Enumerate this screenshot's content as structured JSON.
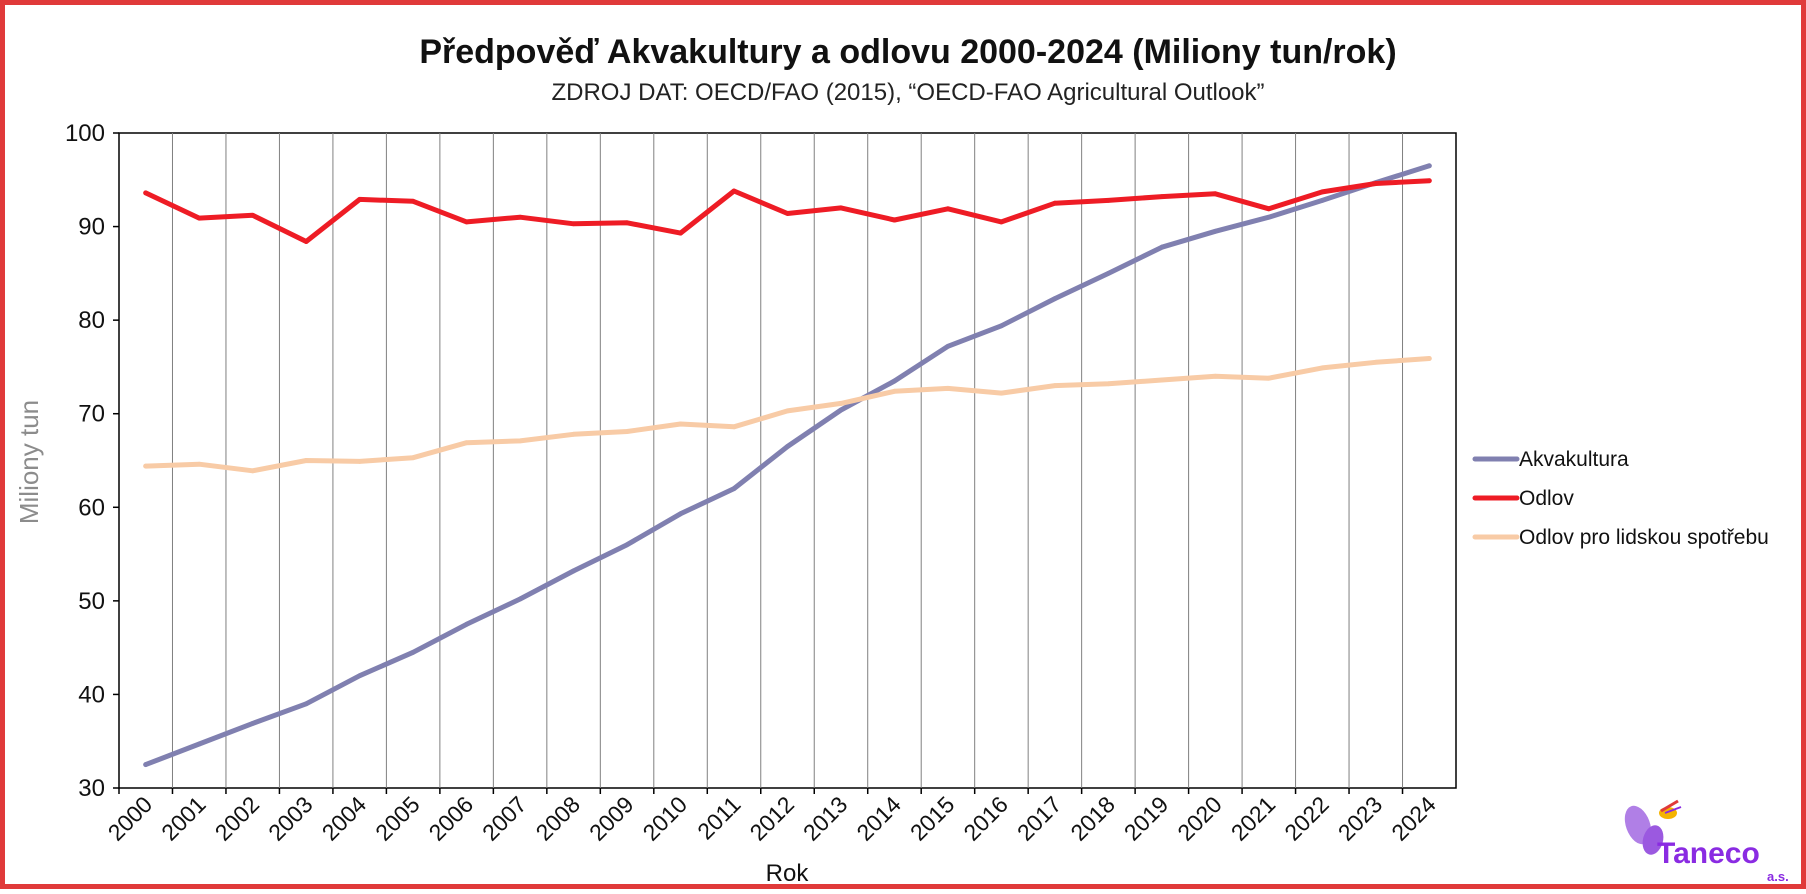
{
  "chart_data": {
    "type": "line",
    "title": "Předpověď Akvakultury a odlovu 2000-2024 (Miliony tun/rok)",
    "subtitle": "ZDROJ DAT: OECD/FAO (2015), “OECD-FAO Agricultural Outlook”",
    "xlabel": "Rok",
    "ylabel": "Miliony tun",
    "ylim": [
      30,
      100
    ],
    "yticks": [
      "30",
      "40",
      "50",
      "60",
      "70",
      "80",
      "90",
      "100"
    ],
    "categories": [
      "2000",
      "2001",
      "2002",
      "2003",
      "2004",
      "2005",
      "2006",
      "2007",
      "2008",
      "2009",
      "2010",
      "2011",
      "2012",
      "2013",
      "2014",
      "2015",
      "2016",
      "2017",
      "2018",
      "2019",
      "2020",
      "2021",
      "2022",
      "2023",
      "2024"
    ],
    "grid": "vertical",
    "legend_position": "right",
    "series": [
      {
        "name": "Akvakultura",
        "color": "#8080b0",
        "values": [
          32.5,
          34.7,
          36.9,
          39.0,
          42.0,
          44.5,
          47.5,
          50.2,
          53.2,
          56.0,
          59.3,
          62.0,
          66.5,
          70.4,
          73.5,
          77.2,
          79.4,
          82.3,
          85.0,
          87.8,
          89.5,
          91.0,
          92.8,
          94.7,
          96.5
        ]
      },
      {
        "name": "Odlov",
        "color": "#ee1c25",
        "values": [
          93.6,
          90.9,
          91.2,
          88.4,
          92.9,
          92.7,
          90.5,
          91.0,
          90.3,
          90.4,
          89.3,
          93.8,
          91.4,
          92.0,
          90.7,
          91.9,
          90.5,
          92.5,
          92.8,
          93.2,
          93.5,
          91.9,
          93.7,
          94.6,
          94.9
        ]
      },
      {
        "name": "Odlov pro lidskou spotřebu",
        "color": "#f8cba6",
        "values": [
          64.4,
          64.6,
          63.9,
          65.0,
          64.9,
          65.3,
          66.9,
          67.1,
          67.8,
          68.1,
          68.9,
          68.6,
          70.3,
          71.1,
          72.4,
          72.7,
          72.2,
          73.0,
          73.2,
          73.6,
          74.0,
          73.8,
          74.9,
          75.5,
          75.9
        ]
      }
    ]
  },
  "logo": {
    "name": "Taneco",
    "suffix": "a.s."
  },
  "colors": {
    "frame": "#e03a3a",
    "grid": "#808080",
    "axis": "#000000"
  }
}
